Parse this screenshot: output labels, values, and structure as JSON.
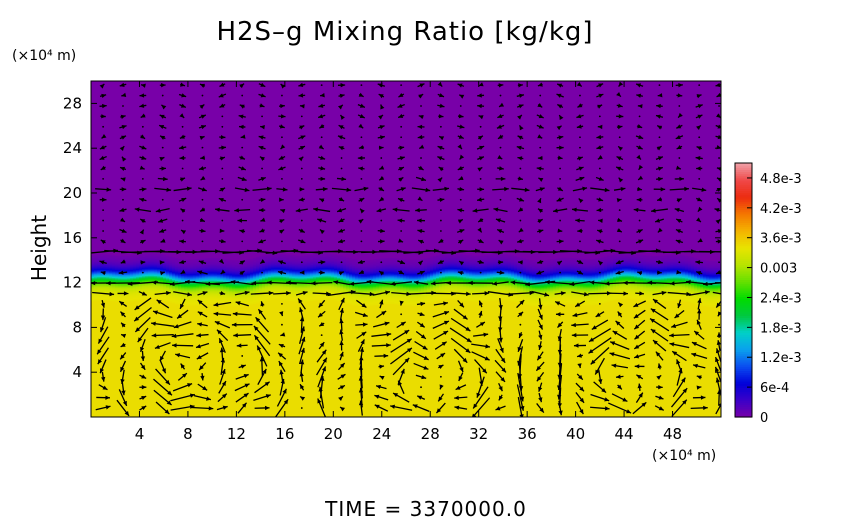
{
  "chart_data": {
    "type": "heatmap",
    "title": "H2S–g Mixing Ratio [kg/kg]",
    "subtitle": "TIME = 3370000.0",
    "xlabel": "",
    "ylabel": "Height",
    "x_unit": "(×10⁴ m)",
    "y_unit": "(×10⁴ m)",
    "xlim": [
      0,
      52
    ],
    "ylim": [
      0,
      30
    ],
    "x_ticks": [
      4,
      8,
      12,
      16,
      20,
      24,
      28,
      32,
      36,
      40,
      44,
      48
    ],
    "y_ticks": [
      4,
      8,
      12,
      16,
      20,
      24,
      28
    ],
    "grid": false,
    "colorbar": {
      "min": 0,
      "max": 0.0051,
      "tick_values": [
        0,
        0.0006,
        0.0012,
        0.0018,
        0.0024,
        0.003,
        0.0036,
        0.0042,
        0.0048
      ],
      "tick_labels": [
        "0",
        "6e-4",
        "1.2e-3",
        "1.8e-3",
        "2.4e-3",
        "0.003",
        "3.6e-3",
        "4.2e-3",
        "4.8e-3"
      ],
      "palette": [
        "#7800a8",
        "#3c00c8",
        "#0000d8",
        "#0a4cf0",
        "#0aa0ee",
        "#00d0c8",
        "#00c840",
        "#00dc00",
        "#64e000",
        "#b8e400",
        "#e8e400",
        "#f4b400",
        "#f47800",
        "#ec2c10",
        "#f04848",
        "#f0a0a8"
      ]
    },
    "field": {
      "upper_value": 0,
      "lower_value": 0.00345,
      "interface_height": 12.3,
      "transition_half_width": 0.45
    },
    "vector_field": {
      "description": "wind vectors",
      "jet_heights": [
        20.7,
        18.1,
        14.7,
        11.8,
        11.3
      ],
      "eddy_centers": [
        [
          8.5,
          4.5
        ],
        [
          28.2,
          3.2
        ],
        [
          44.2,
          3.4
        ]
      ]
    }
  }
}
